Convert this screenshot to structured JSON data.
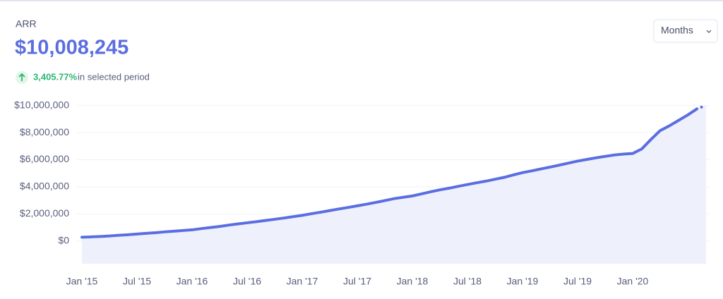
{
  "header": {
    "metric": "ARR",
    "value": "$10,008,245",
    "change": "3,405.77%",
    "change_text": "in selected period",
    "period_select": "Months"
  },
  "chart_data": {
    "type": "area",
    "categories": [
      "Jan '15",
      null,
      null,
      null,
      null,
      null,
      "Jul '15",
      null,
      null,
      null,
      null,
      null,
      "Jan '16",
      null,
      null,
      null,
      null,
      null,
      "Jul '16",
      null,
      null,
      null,
      null,
      null,
      "Jan '17",
      null,
      null,
      null,
      null,
      null,
      "Jul '17",
      null,
      null,
      null,
      null,
      null,
      "Jan '18",
      null,
      null,
      null,
      null,
      null,
      "Jul '18",
      null,
      null,
      null,
      null,
      null,
      "Jan '19",
      null,
      null,
      null,
      null,
      null,
      "Jul '19",
      null,
      null,
      null,
      null,
      null,
      "Jan '20",
      null,
      null,
      null,
      null,
      null,
      null,
      null,
      null
    ],
    "values": [
      285480,
      310000,
      340000,
      380000,
      430000,
      470000,
      520000,
      570000,
      620000,
      680000,
      730000,
      780000,
      830000,
      920000,
      1000000,
      1080000,
      1180000,
      1270000,
      1350000,
      1430000,
      1520000,
      1610000,
      1700000,
      1800000,
      1900000,
      2020000,
      2130000,
      2250000,
      2370000,
      2480000,
      2600000,
      2720000,
      2850000,
      2990000,
      3130000,
      3230000,
      3330000,
      3480000,
      3640000,
      3780000,
      3900000,
      4040000,
      4170000,
      4300000,
      4420000,
      4560000,
      4700000,
      4880000,
      5050000,
      5180000,
      5320000,
      5460000,
      5600000,
      5750000,
      5900000,
      6020000,
      6140000,
      6250000,
      6350000,
      6420000,
      6460000,
      6800000,
      7500000,
      8150000,
      8500000,
      8900000,
      9300000,
      9750000,
      10008245
    ],
    "color": "#5b6ee1",
    "area_color": "#eef0fc",
    "ylim": [
      -1670000,
      10500000
    ],
    "yticks": [
      {
        "value": 0,
        "label": "$0"
      },
      {
        "value": 2000000,
        "label": "$2,000,000"
      },
      {
        "value": 4000000,
        "label": "$4,000,000"
      },
      {
        "value": 6000000,
        "label": "$6,000,000"
      },
      {
        "value": 8000000,
        "label": "$8,000,000"
      },
      {
        "value": 10000000,
        "label": "$10,000,000"
      }
    ],
    "grid": true
  }
}
